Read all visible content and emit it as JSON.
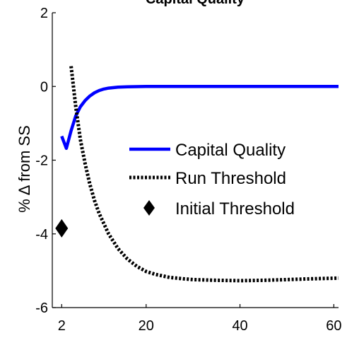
{
  "chart_data": {
    "type": "line",
    "title": "Capital Quality",
    "xlabel": "",
    "ylabel": "% Δ from SS",
    "xlim": [
      0,
      61
    ],
    "ylim": [
      -6,
      2
    ],
    "xticks": [
      2,
      20,
      40,
      60
    ],
    "yticks": [
      -6,
      -4,
      -2,
      0,
      2
    ],
    "xtick_labels": [
      "2",
      "20",
      "40",
      "60"
    ],
    "ytick_labels": [
      "-6",
      "-4",
      "-2",
      "0",
      "2"
    ],
    "grid": false,
    "legend_position": "center-right",
    "series": [
      {
        "name": "Capital Quality",
        "style": "solid",
        "color": "#0000ff",
        "x": [
          2,
          3,
          4,
          5,
          6,
          7,
          8,
          9,
          10,
          11,
          12,
          14,
          16,
          18,
          20,
          25,
          30,
          40,
          50,
          60,
          61
        ],
        "y": [
          -1.35,
          -1.68,
          -1.2,
          -0.8,
          -0.55,
          -0.38,
          -0.26,
          -0.17,
          -0.11,
          -0.07,
          -0.045,
          -0.02,
          -0.01,
          -0.005,
          0,
          0,
          0,
          0,
          0,
          0,
          0
        ]
      },
      {
        "name": "Run Threshold",
        "style": "dotted",
        "color": "#000000",
        "x": [
          4,
          5,
          6,
          7,
          8,
          9,
          10,
          12,
          14,
          16,
          18,
          20,
          22,
          25,
          28,
          30,
          35,
          40,
          45,
          50,
          55,
          61
        ],
        "y": [
          0.55,
          -0.55,
          -1.45,
          -2.1,
          -2.65,
          -3.1,
          -3.45,
          -4.0,
          -4.4,
          -4.68,
          -4.88,
          -5.02,
          -5.1,
          -5.18,
          -5.22,
          -5.24,
          -5.26,
          -5.27,
          -5.26,
          -5.24,
          -5.22,
          -5.2
        ]
      },
      {
        "name": "Initial Threshold",
        "style": "marker",
        "marker": "diamond",
        "color": "#000000",
        "x": [
          2
        ],
        "y": [
          -3.85
        ]
      }
    ]
  }
}
